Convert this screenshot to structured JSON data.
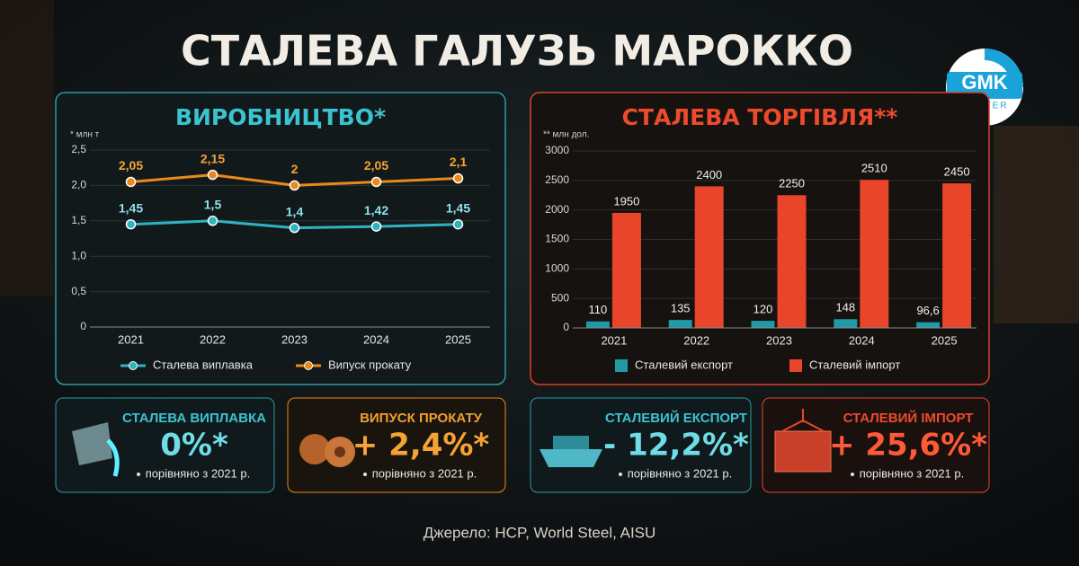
{
  "title": "СТАЛЕВА ГАЛУЗЬ МАРОККО",
  "logo": {
    "top": "GMK",
    "bottom": "CENTER"
  },
  "chart_data": [
    {
      "type": "line",
      "title": "ВИРОБНИЦТВО*",
      "y_label": "* млн т",
      "categories": [
        "2021",
        "2022",
        "2023",
        "2024",
        "2025"
      ],
      "series": [
        {
          "name": "Сталева виплавка",
          "color": "#2fb3c0",
          "values": [
            1.45,
            1.5,
            1.4,
            1.42,
            1.45
          ],
          "value_labels": [
            "1,45",
            "1,5",
            "1,4",
            "1,42",
            "1,45"
          ]
        },
        {
          "name": "Випуск прокату",
          "color": "#e8891c",
          "values": [
            2.05,
            2.15,
            2,
            2.05,
            2.1
          ],
          "value_labels": [
            "2,05",
            "2,15",
            "2",
            "2,05",
            "2,1"
          ]
        }
      ],
      "ylim": [
        0,
        2.5
      ],
      "yticks": [
        0,
        {
          "value": 0.5,
          "label": "0,5"
        },
        {
          "value": 1,
          "label": "1,0"
        },
        {
          "value": 1.5,
          "label": "1,5"
        },
        {
          "value": 2,
          "label": "2,0"
        },
        {
          "value": 2.5,
          "label": "2,5"
        }
      ],
      "grid": true,
      "legend": "bottom"
    },
    {
      "type": "bar",
      "title": "СТАЛЕВА ТОРГІВЛЯ**",
      "y_label": "** млн дол.",
      "categories": [
        "2021",
        "2022",
        "2023",
        "2024",
        "2025"
      ],
      "series": [
        {
          "name": "Сталевий експорт",
          "color": "#1f9aa6",
          "values": [
            110,
            135,
            120,
            148,
            96.6
          ],
          "value_labels": [
            "110",
            "135",
            "120",
            "148",
            "96,6"
          ]
        },
        {
          "name": "Сталевий імпорт",
          "color": "#e8452a",
          "values": [
            1950,
            2400,
            2250,
            2510,
            2450
          ],
          "value_labels": [
            "1950",
            "2400",
            "2250",
            "2510",
            "2450"
          ]
        }
      ],
      "ylim": [
        0,
        3000
      ],
      "yticks": [
        0,
        500,
        1000,
        1500,
        2000,
        2500,
        3000
      ],
      "grid": true,
      "legend": "bottom"
    }
  ],
  "cards": [
    {
      "title": "СТАЛЕВА ВИПЛАВКА",
      "value": "0%*",
      "note": "порівняно з 2021 р."
    },
    {
      "title": "ВИПУСК ПРОКАТУ",
      "value": "+ 2,4%*",
      "note": "порівняно з 2021 р."
    },
    {
      "title": "СТАЛЕВИЙ ЕКСПОРТ",
      "value": "- 12,2%*",
      "note": "порівняно з 2021 р."
    },
    {
      "title": "СТАЛЕВИЙ ІМПОРТ",
      "value": "+ 25,6%*",
      "note": "порівняно з 2021 р."
    }
  ],
  "source": "Джерело: HCP, World Steel, AISU"
}
